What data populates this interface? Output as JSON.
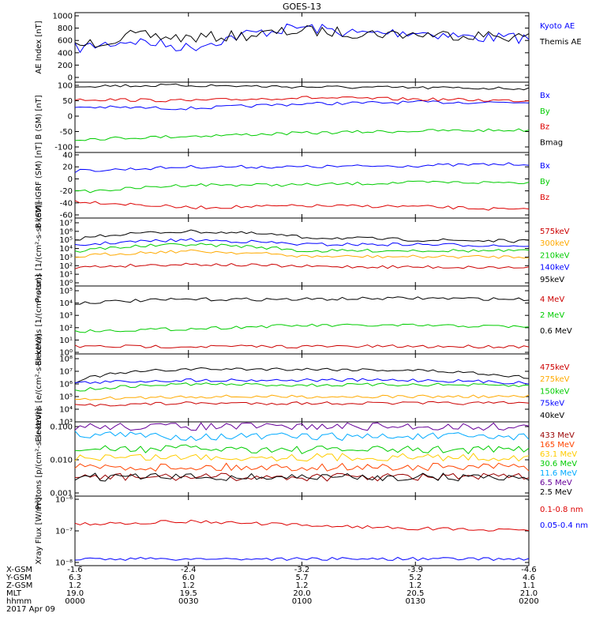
{
  "title": "GOES-13",
  "panels": [
    {
      "ylabel": "AE Index [nT]",
      "ticks": [
        "1000",
        "800",
        "600",
        "400",
        "200",
        "0"
      ],
      "legend": [
        {
          "name": "Kyoto AE",
          "color": "#0000ff"
        },
        {
          "name": "Themis AE",
          "color": "#000000"
        }
      ]
    },
    {
      "ylabel": "B (SM) [nT]",
      "ticks": [
        "100",
        "50",
        "0",
        "-50",
        "-100"
      ],
      "legend": [
        {
          "name": "Bx",
          "color": "#0000ff"
        },
        {
          "name": "By",
          "color": "#00cc00"
        },
        {
          "name": "Bz",
          "color": "#dd0000"
        },
        {
          "name": "Bmag",
          "color": "#000000"
        }
      ]
    },
    {
      "ylabel": "B (SM)-IGRF (SM) [nT]",
      "ticks": [
        "40",
        "20",
        "0",
        "-20",
        "-40",
        "-60"
      ],
      "legend": [
        {
          "name": "Bx",
          "color": "#0000ff"
        },
        {
          "name": "By",
          "color": "#00cc00"
        },
        {
          "name": "Bz",
          "color": "#dd0000"
        }
      ]
    },
    {
      "ylabel": "Protons [1/(cm²-s-sr-keV)]",
      "ticks": [
        "10⁷",
        "10⁶",
        "10⁵",
        "10⁴",
        "10³",
        "10²",
        "10¹",
        "10⁰"
      ],
      "legend": [
        {
          "name": "575keV",
          "color": "#cc0000"
        },
        {
          "name": "300keV",
          "color": "#ffaa00"
        },
        {
          "name": "210keV",
          "color": "#00cc00"
        },
        {
          "name": "140keV",
          "color": "#0000ff"
        },
        {
          "name": "95keV",
          "color": "#000000"
        }
      ]
    },
    {
      "ylabel": "Electrons [1/(cm²-s-sr)]",
      "ticks": [
        "10⁵",
        "10⁴",
        "10³",
        "10²",
        "10¹",
        "10⁰"
      ],
      "legend": [
        {
          "name": "4 MeV",
          "color": "#cc0000"
        },
        {
          "name": "2 MeV",
          "color": "#00cc00"
        },
        {
          "name": "0.6 MeV",
          "color": "#000000"
        }
      ]
    },
    {
      "ylabel": "Electrons [e/(cm²-s-sr-keV)]",
      "ticks": [
        "10⁸",
        "10⁷",
        "10⁶",
        "10⁵",
        "10⁴",
        "10³"
      ],
      "legend": [
        {
          "name": "475keV",
          "color": "#cc0000"
        },
        {
          "name": "275keV",
          "color": "#ffaa00"
        },
        {
          "name": "150keV",
          "color": "#00cc00"
        },
        {
          "name": "75keV",
          "color": "#0000ff"
        },
        {
          "name": "40keV",
          "color": "#000000"
        }
      ]
    },
    {
      "ylabel": "Protons [p/(cm²-s-sr-keV)]",
      "ticks": [
        "0.100",
        "0.010",
        "0.001"
      ],
      "legend": [
        {
          "name": "433 MeV",
          "color": "#990000"
        },
        {
          "name": "165 MeV",
          "color": "#ff4400"
        },
        {
          "name": "63.1 MeV",
          "color": "#ffcc00"
        },
        {
          "name": "30.6 MeV",
          "color": "#00cc00"
        },
        {
          "name": "11.6 MeV",
          "color": "#00aaff"
        },
        {
          "name": "6.5 MeV",
          "color": "#660099"
        },
        {
          "name": "2.5 MeV",
          "color": "#000000"
        }
      ]
    },
    {
      "ylabel": "Xray Flux [W/m²]",
      "ticks": [
        "10⁻⁶",
        "10⁻⁷",
        "10⁻⁸"
      ],
      "legend": [
        {
          "name": "0.1-0.8 nm",
          "color": "#dd0000"
        },
        {
          "name": "0.05-0.4 nm",
          "color": "#0000ff"
        }
      ]
    }
  ],
  "xaxis": {
    "row_labels": [
      "X-GSM",
      "Y-GSM",
      "Z-GSM",
      "MLT",
      "hhmm",
      "2017 Apr 09"
    ],
    "columns": [
      {
        "x": "-1.6",
        "y": "6.3",
        "z": "1.2",
        "mlt": "19.0",
        "hhmm": "0000"
      },
      {
        "x": "-2.4",
        "y": "6.0",
        "z": "1.2",
        "mlt": "19.5",
        "hhmm": "0030"
      },
      {
        "x": "-3.2",
        "y": "5.7",
        "z": "1.2",
        "mlt": "20.0",
        "hhmm": "0100"
      },
      {
        "x": "-3.9",
        "y": "5.2",
        "z": "1.2",
        "mlt": "20.5",
        "hhmm": "0130"
      },
      {
        "x": "-4.6",
        "y": "4.6",
        "z": "1.1",
        "mlt": "21.0",
        "hhmm": "0200"
      }
    ]
  },
  "chart_data": [
    {
      "type": "line",
      "title": "AE Index",
      "xlabel": "hhmm",
      "ylabel": "AE Index [nT]",
      "ylim": [
        0,
        1000
      ],
      "x": [
        "0000",
        "0015",
        "0030",
        "0045",
        "0100",
        "0115",
        "0130",
        "0145",
        "0200"
      ],
      "series": [
        {
          "name": "Kyoto AE",
          "values": [
            470,
            600,
            480,
            700,
            820,
            710,
            740,
            650,
            640
          ]
        },
        {
          "name": "Themis AE",
          "values": [
            500,
            680,
            640,
            680,
            760,
            720,
            700,
            690,
            650
          ]
        }
      ]
    },
    {
      "type": "line",
      "title": "B (SM)",
      "xlabel": "hhmm",
      "ylabel": "B (SM) [nT]",
      "ylim": [
        -100,
        100
      ],
      "x": [
        "0000",
        "0030",
        "0100",
        "0130",
        "0200"
      ],
      "series": [
        {
          "name": "Bx",
          "values": [
            30,
            25,
            40,
            45,
            45
          ]
        },
        {
          "name": "By",
          "values": [
            -75,
            -65,
            -55,
            -48,
            -45
          ]
        },
        {
          "name": "Bz",
          "values": [
            55,
            50,
            60,
            55,
            50
          ]
        },
        {
          "name": "Bmag",
          "values": [
            98,
            100,
            95,
            92,
            90
          ]
        }
      ]
    },
    {
      "type": "line",
      "title": "B (SM)-IGRF (SM)",
      "xlabel": "hhmm",
      "ylabel": "B (SM)-IGRF (SM) [nT]",
      "ylim": [
        -60,
        40
      ],
      "x": [
        "0000",
        "0030",
        "0100",
        "0130",
        "0200"
      ],
      "series": [
        {
          "name": "Bx",
          "values": [
            13,
            20,
            20,
            22,
            25
          ]
        },
        {
          "name": "By",
          "values": [
            -22,
            -10,
            -10,
            -6,
            -6
          ]
        },
        {
          "name": "Bz",
          "values": [
            -37,
            -48,
            -45,
            -46,
            -52
          ]
        }
      ]
    },
    {
      "type": "line",
      "title": "Protons",
      "xlabel": "hhmm",
      "ylabel": "Protons [1/(cm²-s-sr-keV)]",
      "ylim": [
        "10⁰",
        "10⁷"
      ],
      "x": [
        "0000",
        "0030",
        "0100",
        "0130",
        "0200"
      ],
      "series": [
        {
          "name": "95keV",
          "values": [
            100000.0,
            1000000.0,
            200000.0,
            100000.0,
            70000.0
          ]
        },
        {
          "name": "140keV",
          "values": [
            20000.0,
            100000.0,
            30000.0,
            30000.0,
            20000.0
          ]
        },
        {
          "name": "210keV",
          "values": [
            4000.0,
            30000.0,
            5000.0,
            6000.0,
            5000.0
          ]
        },
        {
          "name": "300keV",
          "values": [
            1000.0,
            5000.0,
            1200.0,
            1100.0,
            1100.0
          ]
        },
        {
          "name": "575keV",
          "values": [
            60,
            150,
            80,
            70,
            60
          ]
        }
      ]
    },
    {
      "type": "line",
      "title": "Electrons",
      "xlabel": "hhmm",
      "ylabel": "Electrons [1/(cm²-s-sr)]",
      "ylim": [
        "10⁰",
        "10⁵"
      ],
      "x": [
        "0000",
        "0030",
        "0100",
        "0130",
        "0200"
      ],
      "series": [
        {
          "name": "0.6 MeV",
          "values": [
            10000.0,
            20000.0,
            20000.0,
            25000.0,
            20000.0
          ]
        },
        {
          "name": "2 MeV",
          "values": [
            50,
            80,
            150,
            150,
            120
          ]
        },
        {
          "name": "4 MeV",
          "values": [
            3,
            3,
            3,
            3,
            3
          ]
        }
      ]
    },
    {
      "type": "line",
      "title": "Electrons",
      "xlabel": "hhmm",
      "ylabel": "Electrons [e/(cm²-s-sr-keV)]",
      "ylim": [
        "10³",
        "10⁸"
      ],
      "x": [
        "0000",
        "0030",
        "0100",
        "0130",
        "0200"
      ],
      "series": [
        {
          "name": "40keV",
          "values": [
            1500000.0,
            15000000.0,
            15000000.0,
            12000000.0,
            3000000.0
          ]
        },
        {
          "name": "75keV",
          "values": [
            1200000.0,
            2000000.0,
            2000000.0,
            2000000.0,
            1200000.0
          ]
        },
        {
          "name": "150keV",
          "values": [
            300000.0,
            1000000.0,
            800000.0,
            900000.0,
            700000.0
          ]
        },
        {
          "name": "275keV",
          "values": [
            60000.0,
            100000.0,
            100000.0,
            100000.0,
            100000.0
          ]
        },
        {
          "name": "475keV",
          "values": [
            20000.0,
            30000.0,
            30000.0,
            30000.0,
            30000.0
          ]
        }
      ]
    },
    {
      "type": "line",
      "title": "Protons",
      "xlabel": "hhmm",
      "ylabel": "Protons [p/(cm²-s-sr-keV)]",
      "ylim": [
        0.001,
        0.1
      ],
      "x": [
        "0000",
        "0030",
        "0100",
        "0130",
        "0200"
      ],
      "series": [
        {
          "name": "6.5 MeV",
          "values": [
            0.1,
            0.1,
            0.1,
            0.1,
            0.1
          ]
        },
        {
          "name": "11.6 MeV",
          "values": [
            0.06,
            0.05,
            0.05,
            0.05,
            0.05
          ]
        },
        {
          "name": "30.6 MeV",
          "values": [
            0.02,
            0.022,
            0.02,
            0.02,
            0.02
          ]
        },
        {
          "name": "63.1 MeV",
          "values": [
            0.012,
            0.012,
            0.012,
            0.012,
            0.012
          ]
        },
        {
          "name": "165 MeV",
          "values": [
            0.006,
            0.006,
            0.006,
            0.006,
            0.006
          ]
        },
        {
          "name": "433 MeV",
          "values": [
            0.003,
            0.003,
            0.003,
            0.003,
            0.003
          ]
        },
        {
          "name": "2.5 MeV",
          "values": [
            0.003,
            0.003,
            0.003,
            0.003,
            0.003
          ]
        }
      ]
    },
    {
      "type": "line",
      "title": "Xray Flux",
      "xlabel": "hhmm",
      "ylabel": "Xray Flux [W/m²]",
      "ylim": [
        "10⁻⁸",
        "10⁻⁶"
      ],
      "x": [
        "0000",
        "0030",
        "0100",
        "0130",
        "0200"
      ],
      "series": [
        {
          "name": "0.1-0.8 nm",
          "values": [
            1.6e-07,
            2e-07,
            1.5e-07,
            1.2e-07,
            1e-07
          ]
        },
        {
          "name": "0.05-0.4 nm",
          "values": [
            1.3e-08,
            1.3e-08,
            1.3e-08,
            1.3e-08,
            1.3e-08
          ]
        }
      ]
    }
  ]
}
